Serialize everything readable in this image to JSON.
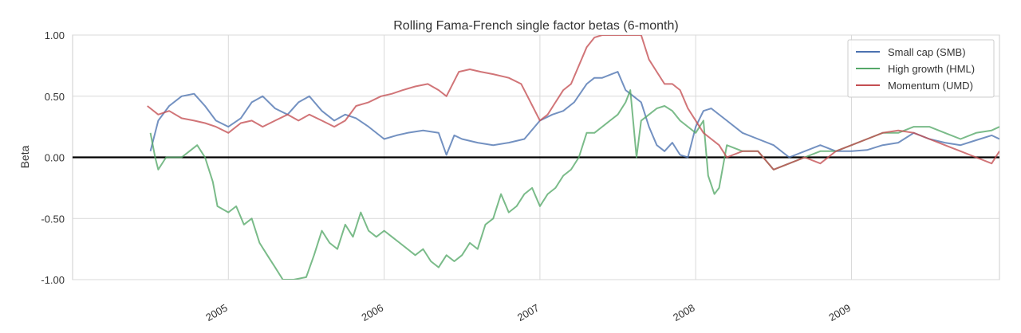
{
  "chart_data": {
    "type": "line",
    "title": "Rolling Fama-French single factor betas (6-month)",
    "xlabel": "",
    "ylabel": "Beta",
    "xlim": [
      2004.0,
      2009.95
    ],
    "ylim": [
      -1.0,
      1.0
    ],
    "yticks": [
      1.0,
      0.5,
      0.0,
      -0.5,
      -1.0
    ],
    "ytick_labels": [
      "1.00",
      "0.50",
      "0.00",
      "-0.50",
      "-1.00"
    ],
    "xticks": [
      2005,
      2006,
      2007,
      2008,
      2009
    ],
    "xtick_labels": [
      "2005",
      "2006",
      "2007",
      "2008",
      "2009"
    ],
    "grid": true,
    "zero_line": true,
    "legend_position": "top-right",
    "series": [
      {
        "name": "Small cap (SMB)",
        "color": "#4c72b0",
        "x": [
          2004.5,
          2004.55,
          2004.62,
          2004.7,
          2004.78,
          2004.85,
          2004.92,
          2005.0,
          2005.08,
          2005.15,
          2005.22,
          2005.3,
          2005.38,
          2005.45,
          2005.52,
          2005.6,
          2005.68,
          2005.75,
          2005.82,
          2005.9,
          2006.0,
          2006.08,
          2006.15,
          2006.25,
          2006.35,
          2006.4,
          2006.45,
          2006.5,
          2006.6,
          2006.7,
          2006.8,
          2006.9,
          2007.0,
          2007.08,
          2007.15,
          2007.22,
          2007.3,
          2007.35,
          2007.4,
          2007.5,
          2007.55,
          2007.6,
          2007.65,
          2007.7,
          2007.75,
          2007.8,
          2007.85,
          2007.9,
          2007.95,
          2008.0,
          2008.05,
          2008.1,
          2008.2,
          2008.3,
          2008.4,
          2008.5,
          2008.6,
          2008.7,
          2008.8,
          2008.9,
          2009.0,
          2009.1,
          2009.2,
          2009.3,
          2009.4,
          2009.5,
          2009.6,
          2009.7,
          2009.8,
          2009.9,
          2009.95
        ],
        "y": [
          0.05,
          0.3,
          0.42,
          0.5,
          0.52,
          0.42,
          0.3,
          0.25,
          0.32,
          0.45,
          0.5,
          0.4,
          0.35,
          0.45,
          0.5,
          0.38,
          0.3,
          0.35,
          0.32,
          0.25,
          0.15,
          0.18,
          0.2,
          0.22,
          0.2,
          0.02,
          0.18,
          0.15,
          0.12,
          0.1,
          0.12,
          0.15,
          0.3,
          0.35,
          0.38,
          0.45,
          0.6,
          0.65,
          0.65,
          0.7,
          0.55,
          0.5,
          0.45,
          0.25,
          0.1,
          0.05,
          0.12,
          0.02,
          0.0,
          0.25,
          0.38,
          0.4,
          0.3,
          0.2,
          0.15,
          0.1,
          0.0,
          0.05,
          0.1,
          0.05,
          0.05,
          0.06,
          0.1,
          0.12,
          0.2,
          0.15,
          0.12,
          0.1,
          0.14,
          0.18,
          0.15
        ]
      },
      {
        "name": "High growth (HML)",
        "color": "#55a868",
        "x": [
          2004.5,
          2004.53,
          2004.55,
          2004.6,
          2004.65,
          2004.7,
          2004.75,
          2004.8,
          2004.85,
          2004.9,
          2004.93,
          2005.0,
          2005.05,
          2005.1,
          2005.15,
          2005.2,
          2005.25,
          2005.3,
          2005.35,
          2005.4,
          2005.42,
          2005.5,
          2005.55,
          2005.6,
          2005.65,
          2005.7,
          2005.75,
          2005.8,
          2005.85,
          2005.9,
          2005.95,
          2006.0,
          2006.05,
          2006.1,
          2006.15,
          2006.2,
          2006.25,
          2006.3,
          2006.35,
          2006.4,
          2006.45,
          2006.5,
          2006.55,
          2006.6,
          2006.65,
          2006.7,
          2006.75,
          2006.8,
          2006.85,
          2006.9,
          2006.95,
          2007.0,
          2007.05,
          2007.1,
          2007.15,
          2007.2,
          2007.25,
          2007.3,
          2007.35,
          2007.4,
          2007.45,
          2007.5,
          2007.55,
          2007.58,
          2007.62,
          2007.65,
          2007.7,
          2007.75,
          2007.8,
          2007.85,
          2007.9,
          2007.95,
          2008.0,
          2008.05,
          2008.08,
          2008.12,
          2008.15,
          2008.2,
          2008.3,
          2008.4,
          2008.5,
          2008.6,
          2008.7,
          2008.8,
          2008.9,
          2009.0,
          2009.1,
          2009.2,
          2009.3,
          2009.4,
          2009.5,
          2009.6,
          2009.7,
          2009.8,
          2009.9,
          2009.95
        ],
        "y": [
          0.2,
          0.0,
          -0.1,
          0.0,
          0.0,
          0.0,
          0.05,
          0.1,
          0.0,
          -0.2,
          -0.4,
          -0.45,
          -0.4,
          -0.55,
          -0.5,
          -0.7,
          -0.8,
          -0.9,
          -1.0,
          -1.0,
          -1.0,
          -0.98,
          -0.8,
          -0.6,
          -0.7,
          -0.75,
          -0.55,
          -0.65,
          -0.45,
          -0.6,
          -0.65,
          -0.6,
          -0.65,
          -0.7,
          -0.75,
          -0.8,
          -0.75,
          -0.85,
          -0.9,
          -0.8,
          -0.85,
          -0.8,
          -0.7,
          -0.75,
          -0.55,
          -0.5,
          -0.3,
          -0.45,
          -0.4,
          -0.3,
          -0.25,
          -0.4,
          -0.3,
          -0.25,
          -0.15,
          -0.1,
          0.0,
          0.2,
          0.2,
          0.25,
          0.3,
          0.35,
          0.45,
          0.55,
          0.0,
          0.3,
          0.35,
          0.4,
          0.42,
          0.38,
          0.3,
          0.25,
          0.2,
          0.3,
          -0.15,
          -0.3,
          -0.25,
          0.1,
          0.05,
          0.05,
          -0.1,
          -0.05,
          0.0,
          0.05,
          0.05,
          0.1,
          0.15,
          0.2,
          0.2,
          0.25,
          0.25,
          0.2,
          0.15,
          0.2,
          0.22,
          0.25
        ]
      },
      {
        "name": "Momentum (UMD)",
        "color": "#c44e52",
        "x": [
          2004.48,
          2004.55,
          2004.62,
          2004.7,
          2004.78,
          2004.85,
          2004.92,
          2005.0,
          2005.08,
          2005.15,
          2005.22,
          2005.3,
          2005.38,
          2005.45,
          2005.52,
          2005.6,
          2005.68,
          2005.75,
          2005.82,
          2005.9,
          2005.98,
          2006.05,
          2006.12,
          2006.2,
          2006.28,
          2006.35,
          2006.4,
          2006.48,
          2006.55,
          2006.62,
          2006.7,
          2006.8,
          2006.88,
          2006.92,
          2007.0,
          2007.05,
          2007.1,
          2007.15,
          2007.2,
          2007.25,
          2007.3,
          2007.35,
          2007.4,
          2007.45,
          2007.5,
          2007.55,
          2007.6,
          2007.65,
          2007.7,
          2007.75,
          2007.8,
          2007.85,
          2007.9,
          2007.95,
          2008.0,
          2008.05,
          2008.1,
          2008.15,
          2008.2,
          2008.3,
          2008.4,
          2008.5,
          2008.6,
          2008.7,
          2008.8,
          2008.9,
          2009.0,
          2009.1,
          2009.2,
          2009.3,
          2009.4,
          2009.5,
          2009.6,
          2009.7,
          2009.8,
          2009.9,
          2009.95
        ],
        "y": [
          0.42,
          0.35,
          0.38,
          0.32,
          0.3,
          0.28,
          0.25,
          0.2,
          0.28,
          0.3,
          0.25,
          0.3,
          0.35,
          0.3,
          0.35,
          0.3,
          0.25,
          0.3,
          0.42,
          0.45,
          0.5,
          0.52,
          0.55,
          0.58,
          0.6,
          0.55,
          0.5,
          0.7,
          0.72,
          0.7,
          0.68,
          0.65,
          0.6,
          0.5,
          0.3,
          0.35,
          0.45,
          0.55,
          0.6,
          0.75,
          0.9,
          0.98,
          1.0,
          1.0,
          1.0,
          1.0,
          1.0,
          1.0,
          0.8,
          0.7,
          0.6,
          0.6,
          0.55,
          0.4,
          0.3,
          0.2,
          0.15,
          0.1,
          0.0,
          0.05,
          0.05,
          -0.1,
          -0.05,
          0.0,
          -0.05,
          0.05,
          0.1,
          0.15,
          0.2,
          0.22,
          0.2,
          0.15,
          0.1,
          0.05,
          0.0,
          -0.05,
          0.05
        ]
      }
    ]
  }
}
